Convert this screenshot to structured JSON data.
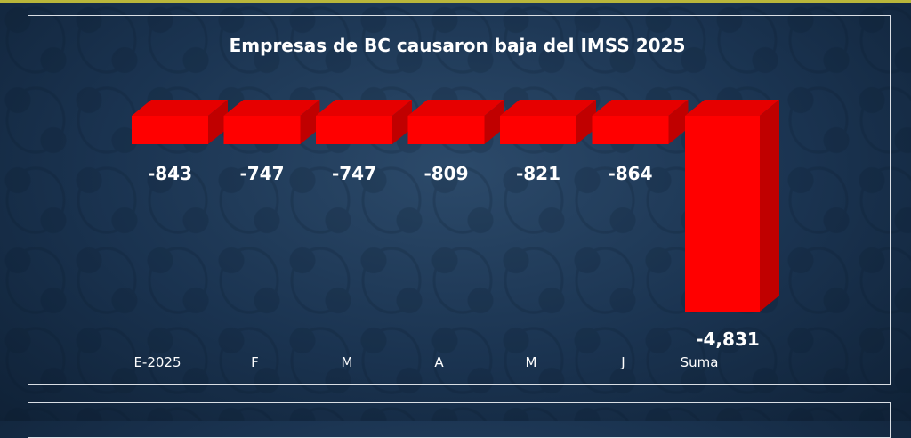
{
  "chart_data": {
    "type": "bar",
    "title": "Empresas de BC causaron baja del IMSS 2025",
    "categories": [
      "E-2025",
      "F",
      "M",
      "A",
      "M",
      "J",
      "Suma"
    ],
    "values": [
      -843,
      -747,
      -747,
      -809,
      -821,
      -864,
      -4831
    ],
    "value_labels": [
      "-843",
      "-747",
      "-747",
      "-809",
      "-821",
      "-864",
      "-4,831"
    ],
    "colors": {
      "bar": "#ff0000",
      "bar_side": "#c00000",
      "bar_top": "#e60000",
      "text": "#ffffff"
    },
    "grid": false,
    "legend": "none"
  }
}
